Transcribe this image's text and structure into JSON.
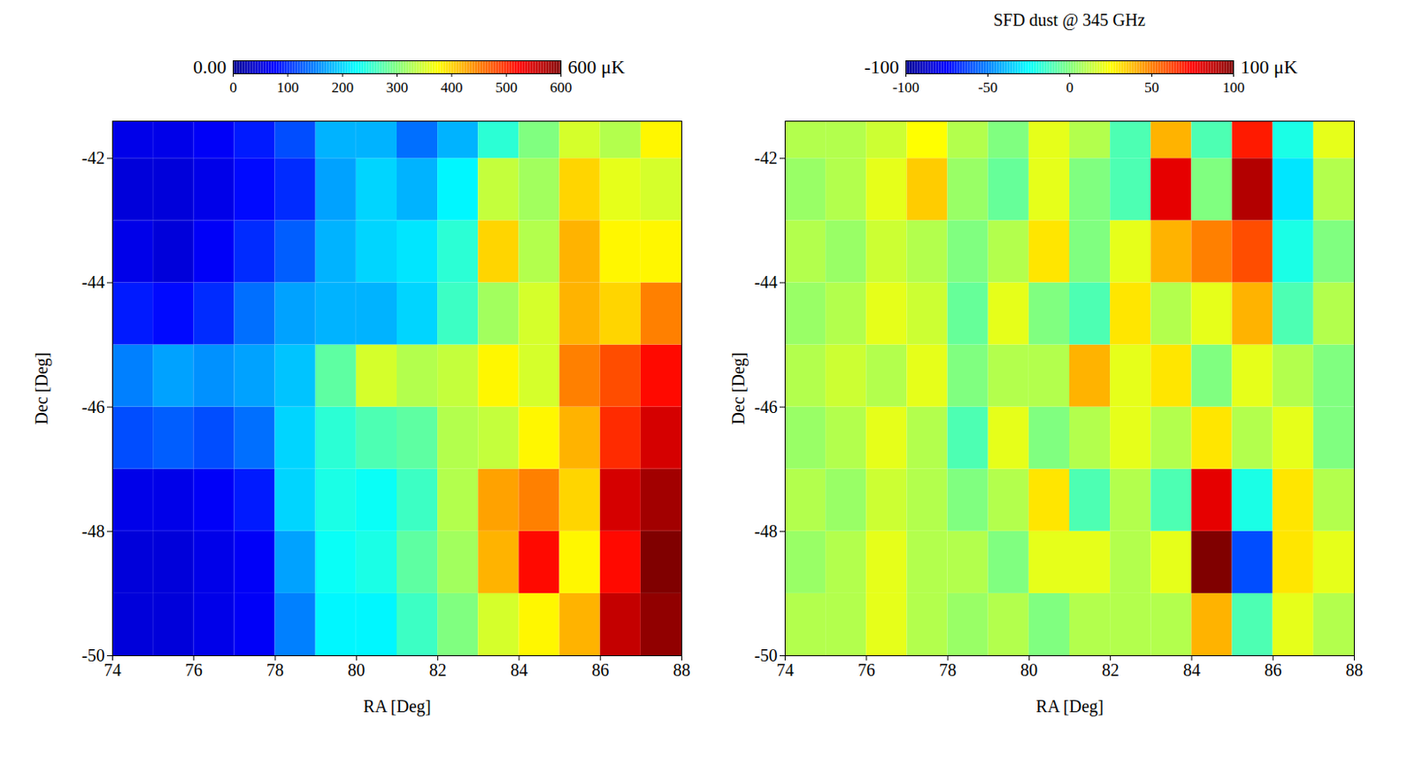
{
  "chart_data": [
    {
      "type": "heatmap",
      "x_label": "RA [Deg]",
      "y_label": "Dec [Deg]",
      "xlim": [
        74,
        88
      ],
      "ylim": [
        -50,
        -41.4
      ],
      "xticks": [
        74,
        76,
        78,
        80,
        82,
        84,
        86,
        88
      ],
      "yticks": [
        -50,
        -48,
        -46,
        -44,
        -42
      ],
      "x_edges": [
        74,
        75,
        76,
        77,
        78,
        79,
        80,
        81,
        82,
        83,
        84,
        85,
        86,
        87,
        88
      ],
      "y_edges": [
        -50,
        -49,
        -48,
        -47,
        -46,
        -45,
        -44,
        -43,
        -42,
        -41.4
      ],
      "cells": [
        [
          50,
          50,
          60,
          70,
          150,
          220,
          220,
          260,
          300,
          350,
          380,
          420,
          560,
          590
        ],
        [
          50,
          50,
          60,
          70,
          170,
          230,
          240,
          280,
          320,
          420,
          520,
          380,
          520,
          600
        ],
        [
          60,
          60,
          70,
          90,
          200,
          240,
          230,
          260,
          330,
          430,
          450,
          400,
          550,
          580
        ],
        [
          120,
          130,
          120,
          140,
          200,
          250,
          270,
          280,
          330,
          340,
          380,
          420,
          500,
          550
        ],
        [
          150,
          170,
          160,
          170,
          190,
          280,
          350,
          330,
          340,
          380,
          350,
          450,
          480,
          520
        ],
        [
          90,
          80,
          100,
          140,
          170,
          180,
          180,
          200,
          260,
          320,
          350,
          420,
          400,
          450
        ],
        [
          60,
          50,
          70,
          100,
          130,
          180,
          200,
          210,
          250,
          400,
          330,
          420,
          380,
          380
        ],
        [
          50,
          50,
          60,
          80,
          100,
          170,
          200,
          180,
          220,
          340,
          320,
          400,
          360,
          350
        ],
        [
          60,
          60,
          70,
          90,
          120,
          180,
          180,
          140,
          180,
          250,
          300,
          350,
          330,
          380
        ]
      ],
      "colorbar": {
        "range": [
          0,
          600
        ],
        "ticks": [
          0,
          100,
          200,
          300,
          400,
          500,
          600
        ],
        "end_labels": [
          "0.00",
          "600 μK"
        ]
      }
    },
    {
      "type": "heatmap",
      "title": "SFD dust @ 345 GHz",
      "x_label": "RA [Deg]",
      "y_label": "Dec [Deg]",
      "xlim": [
        74,
        88
      ],
      "ylim": [
        -50,
        -41.4
      ],
      "xticks": [
        74,
        76,
        78,
        80,
        82,
        84,
        86,
        88
      ],
      "yticks": [
        -50,
        -48,
        -46,
        -44,
        -42
      ],
      "x_edges": [
        74,
        75,
        76,
        77,
        78,
        79,
        80,
        81,
        82,
        83,
        84,
        85,
        86,
        87,
        88
      ],
      "y_edges": [
        -50,
        -49,
        -48,
        -47,
        -46,
        -45,
        -44,
        -43,
        -42,
        -41.4
      ],
      "cells": [
        [
          10,
          10,
          20,
          10,
          5,
          10,
          0,
          10,
          10,
          10,
          40,
          -10,
          20,
          10
        ],
        [
          5,
          10,
          20,
          10,
          10,
          0,
          20,
          20,
          10,
          20,
          100,
          -60,
          30,
          20
        ],
        [
          10,
          5,
          15,
          10,
          0,
          10,
          30,
          -10,
          10,
          -10,
          80,
          -20,
          30,
          10
        ],
        [
          5,
          10,
          20,
          10,
          -10,
          20,
          0,
          10,
          20,
          10,
          30,
          10,
          20,
          0
        ],
        [
          10,
          15,
          10,
          20,
          0,
          10,
          10,
          40,
          20,
          30,
          0,
          20,
          10,
          0
        ],
        [
          5,
          10,
          20,
          15,
          -5,
          20,
          0,
          -10,
          30,
          10,
          20,
          40,
          -10,
          10
        ],
        [
          10,
          5,
          15,
          10,
          0,
          10,
          30,
          0,
          20,
          40,
          50,
          60,
          -20,
          0
        ],
        [
          5,
          10,
          20,
          35,
          5,
          -5,
          20,
          0,
          -10,
          80,
          0,
          90,
          -30,
          10
        ],
        [
          10,
          10,
          15,
          25,
          10,
          0,
          20,
          10,
          -10,
          40,
          -10,
          70,
          -20,
          20
        ]
      ],
      "colorbar": {
        "range": [
          -100,
          100
        ],
        "ticks": [
          -100,
          -50,
          0,
          50,
          100
        ],
        "end_labels": [
          "-100",
          "100 μK"
        ]
      }
    }
  ]
}
